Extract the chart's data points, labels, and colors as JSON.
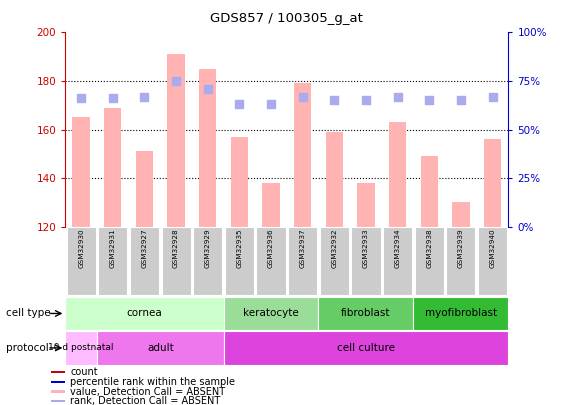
{
  "title": "GDS857 / 100305_g_at",
  "samples": [
    "GSM32930",
    "GSM32931",
    "GSM32927",
    "GSM32928",
    "GSM32929",
    "GSM32935",
    "GSM32936",
    "GSM32937",
    "GSM32932",
    "GSM32933",
    "GSM32934",
    "GSM32938",
    "GSM32939",
    "GSM32940"
  ],
  "bar_values": [
    165,
    169,
    151,
    191,
    185,
    157,
    138,
    179,
    159,
    138,
    163,
    149,
    130,
    156
  ],
  "rank_values": [
    66,
    66,
    67,
    75,
    71,
    63,
    63,
    67,
    65,
    65,
    67,
    65,
    65,
    67
  ],
  "ylim_left": [
    120,
    200
  ],
  "ylim_right": [
    0,
    100
  ],
  "yticks_left": [
    120,
    140,
    160,
    180,
    200
  ],
  "yticks_right": [
    0,
    25,
    50,
    75,
    100
  ],
  "bar_color": "#ffb3b3",
  "rank_color": "#aaaaee",
  "bar_width": 0.55,
  "rank_marker_size": 40,
  "cell_type_groups": [
    {
      "label": "cornea",
      "start": 0,
      "end": 5,
      "color": "#ccffcc"
    },
    {
      "label": "keratocyte",
      "start": 5,
      "end": 8,
      "color": "#99dd99"
    },
    {
      "label": "fibroblast",
      "start": 8,
      "end": 11,
      "color": "#66cc66"
    },
    {
      "label": "myofibroblast",
      "start": 11,
      "end": 14,
      "color": "#33bb33"
    }
  ],
  "protocol_groups": [
    {
      "label": "10 d postnatal",
      "start": 0,
      "end": 1,
      "color": "#ffbbff"
    },
    {
      "label": "adult",
      "start": 1,
      "end": 5,
      "color": "#ee77ee"
    },
    {
      "label": "cell culture",
      "start": 5,
      "end": 14,
      "color": "#dd44dd"
    }
  ],
  "left_tick_color": "#cc0000",
  "right_tick_color": "#0000cc",
  "grid_yticks": [
    140,
    160,
    180
  ],
  "legend_colors": [
    "#cc0000",
    "#0000cc",
    "#ffb3b3",
    "#aaaaee"
  ],
  "legend_labels": [
    "count",
    "percentile rank within the sample",
    "value, Detection Call = ABSENT",
    "rank, Detection Call = ABSENT"
  ]
}
